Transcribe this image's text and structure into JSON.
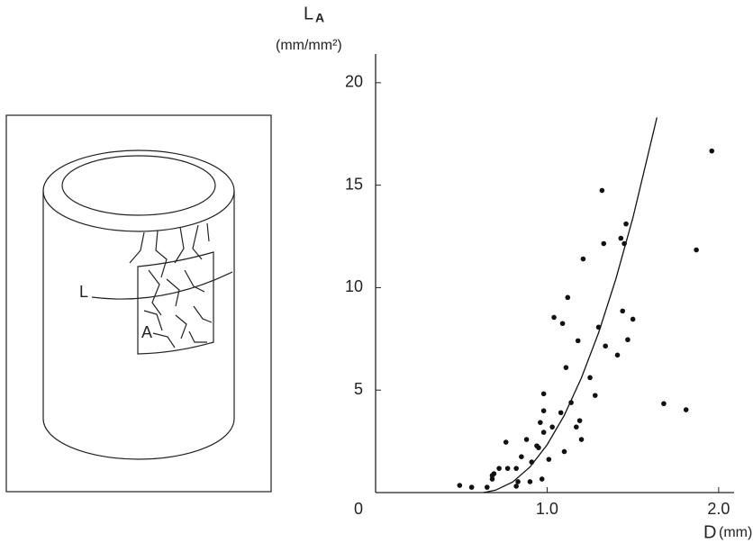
{
  "chart_data": {
    "type": "scatter",
    "diagram_labels": [
      "L",
      "A"
    ],
    "ylabel": "L",
    "ylabel_sub": "A",
    "yunit": "(mm/mm²)",
    "xlabel": "D",
    "xunit": "(mm)",
    "xlim": [
      0,
      2.09
    ],
    "ylim": [
      0,
      21.4
    ],
    "xticks": [
      0,
      {
        "value": 1.0,
        "label": "1.0"
      },
      {
        "value": 2.0,
        "label": "2.0"
      }
    ],
    "yticks": [
      5,
      10,
      15,
      20
    ],
    "color": "#111111",
    "points": {
      "x": [
        0.49,
        0.56,
        0.65,
        0.68,
        0.68,
        0.69,
        0.72,
        0.77,
        0.76,
        0.82,
        0.82,
        0.83,
        0.85,
        0.88,
        0.9,
        0.91,
        0.94,
        0.95,
        0.96,
        0.97,
        0.98,
        0.98,
        0.98,
        1.01,
        1.03,
        1.04,
        1.08,
        1.09,
        1.1,
        1.11,
        1.12,
        1.14,
        1.17,
        1.18,
        1.19,
        1.2,
        1.21,
        1.25,
        1.28,
        1.3,
        1.32,
        1.33,
        1.34,
        1.41,
        1.43,
        1.44,
        1.45,
        1.46,
        1.47,
        1.5,
        1.68,
        1.81,
        1.87,
        1.96
      ],
      "y": [
        0.35,
        0.26,
        0.26,
        0.83,
        0.66,
        0.92,
        1.18,
        1.18,
        2.46,
        1.18,
        0.31,
        0.53,
        1.75,
        2.59,
        0.53,
        1.49,
        2.28,
        2.19,
        3.42,
        0.66,
        2.94,
        3.99,
        4.82,
        1.62,
        3.2,
        8.55,
        3.9,
        8.25,
        2.0,
        6.1,
        9.52,
        4.39,
        3.2,
        7.41,
        3.51,
        2.59,
        11.4,
        5.61,
        4.74,
        8.07,
        14.74,
        12.15,
        7.15,
        6.71,
        12.41,
        8.86,
        12.15,
        13.11,
        7.46,
        8.46,
        4.34,
        4.04,
        11.84,
        16.67
      ]
    },
    "curve": {
      "x": [
        0.63,
        0.7,
        0.8,
        0.9,
        1.0,
        1.1,
        1.2,
        1.3,
        1.4,
        1.5,
        1.6,
        1.64
      ],
      "y": [
        0,
        0.12,
        0.52,
        1.25,
        2.33,
        3.77,
        5.6,
        7.8,
        10.4,
        13.4,
        16.9,
        18.3
      ]
    }
  }
}
